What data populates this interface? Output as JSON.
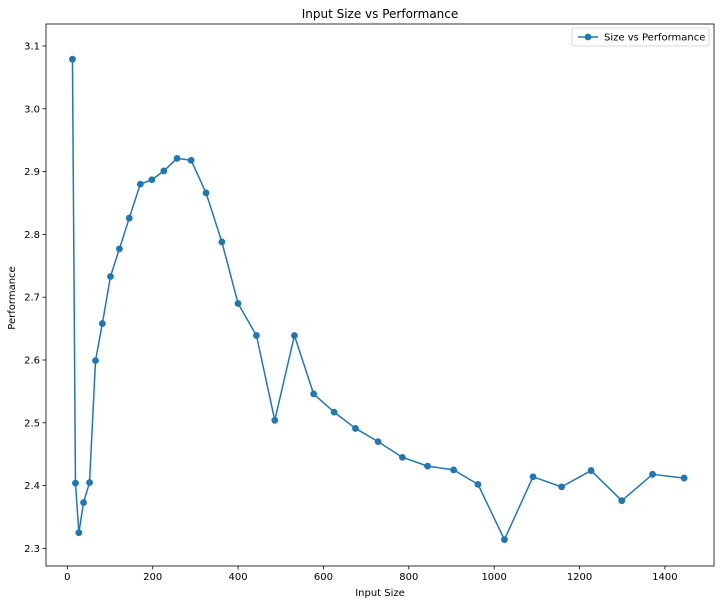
{
  "chart_data": {
    "type": "line",
    "title": "Input Size vs Performance",
    "xlabel": "Input Size",
    "ylabel": "Performance",
    "xlim": [
      -50,
      1515
    ],
    "ylim": [
      2.272,
      3.135
    ],
    "xticks": [
      0,
      200,
      400,
      600,
      800,
      1000,
      1200,
      1400
    ],
    "yticks": [
      2.3,
      2.4,
      2.5,
      2.6,
      2.7,
      2.8,
      2.9,
      3.0,
      3.1
    ],
    "ytick_labels": [
      "2.3",
      "2.4",
      "2.5",
      "2.6",
      "2.7",
      "2.8",
      "2.9",
      "3.0",
      "3.1"
    ],
    "legend_position": "top-right",
    "grid": false,
    "series": [
      {
        "name": "Size vs Performance",
        "color": "#1f77b4",
        "marker": "circle",
        "x": [
          12,
          19,
          27,
          38,
          52,
          66,
          82,
          101,
          122,
          145,
          171,
          198,
          226,
          257,
          290,
          325,
          362,
          400,
          443,
          486,
          532,
          577,
          625,
          675,
          728,
          785,
          844,
          905,
          962,
          1024,
          1091,
          1158,
          1227,
          1299,
          1371,
          1445
        ],
        "y": [
          3.079,
          2.404,
          2.325,
          2.373,
          2.405,
          2.599,
          2.658,
          2.733,
          2.777,
          2.826,
          2.88,
          2.887,
          2.901,
          2.921,
          2.918,
          2.866,
          2.788,
          2.69,
          2.639,
          2.504,
          2.639,
          2.546,
          2.517,
          2.491,
          2.47,
          2.445,
          2.431,
          2.425,
          2.402,
          2.314,
          2.414,
          2.398,
          2.424,
          2.376,
          2.418,
          2.412
        ]
      }
    ]
  }
}
